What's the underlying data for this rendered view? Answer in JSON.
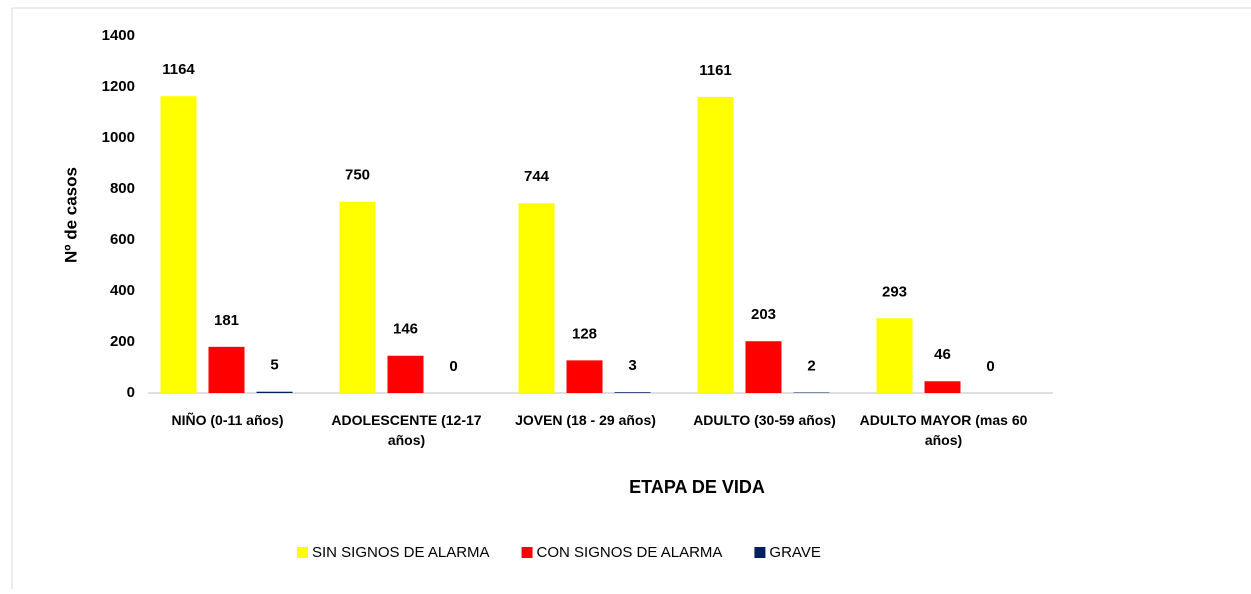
{
  "chart_data": {
    "type": "bar",
    "y_label": "Nº de casos",
    "x_label": "ETAPA DE VIDA",
    "categories": [
      "NIÑO (0-11 años)",
      "ADOLESCENTE (12-17 años)",
      "JOVEN (18 - 29 años)",
      "ADULTO (30-59 años)",
      "ADULTO MAYOR (mas 60 años)"
    ],
    "series": [
      {
        "name": "SIN SIGNOS DE ALARMA",
        "color": "#ffff00",
        "values": [
          1164,
          750,
          744,
          1161,
          293
        ]
      },
      {
        "name": "CON SIGNOS DE ALARMA",
        "color": "#ff0000",
        "values": [
          181,
          146,
          128,
          203,
          46
        ]
      },
      {
        "name": "GRAVE",
        "color": "#002060",
        "values": [
          5,
          0,
          3,
          2,
          0
        ]
      }
    ],
    "ylim": [
      0,
      1400
    ],
    "yticks": [
      0,
      200,
      400,
      600,
      800,
      1000,
      1200,
      1400
    ],
    "grid": false
  }
}
